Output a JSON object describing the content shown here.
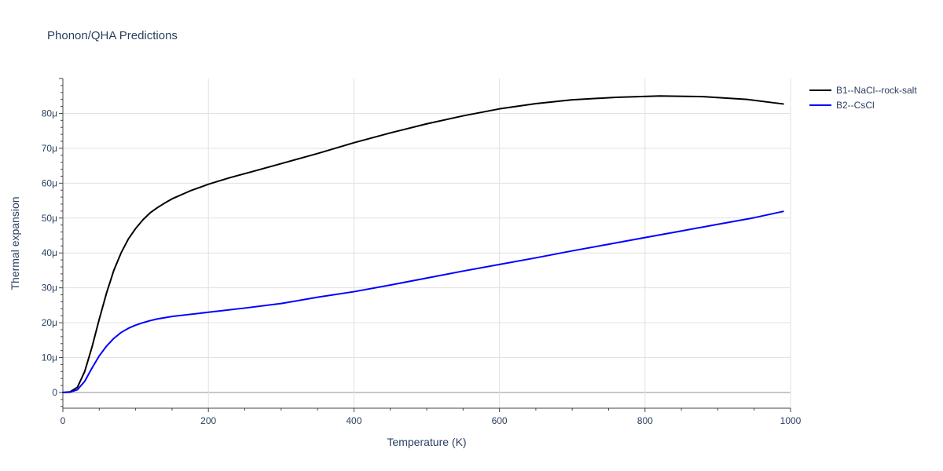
{
  "chart_data": {
    "type": "line",
    "title": "Phonon/QHA Predictions",
    "xlabel": "Temperature (K)",
    "ylabel": "Thermal expansion",
    "xlim": [
      0,
      1000
    ],
    "ylim": [
      -4.5e-06,
      9e-05
    ],
    "x_ticks": [
      0,
      200,
      400,
      600,
      800,
      1000
    ],
    "x_tick_labels": [
      "0",
      "200",
      "400",
      "600",
      "800",
      "1000"
    ],
    "y_ticks": [
      0,
      1e-05,
      2e-05,
      3e-05,
      4e-05,
      5e-05,
      6e-05,
      7e-05,
      8e-05
    ],
    "y_tick_labels": [
      "0",
      "10μ",
      "20μ",
      "30μ",
      "40μ",
      "50μ",
      "60μ",
      "70μ",
      "80μ"
    ],
    "grid": true,
    "legend_position": "top-right",
    "series": [
      {
        "name": "B1--NaCl--rock-salt",
        "color": "#000000",
        "x": [
          0,
          10,
          20,
          30,
          40,
          50,
          60,
          70,
          80,
          90,
          100,
          110,
          120,
          130,
          140,
          150,
          175,
          200,
          230,
          260,
          300,
          350,
          400,
          450,
          500,
          550,
          600,
          650,
          700,
          760,
          820,
          880,
          940,
          990
        ],
        "y": [
          0,
          2e-07,
          1.5e-06,
          6e-06,
          1.3e-05,
          2.1e-05,
          2.85e-05,
          3.5e-05,
          4e-05,
          4.4e-05,
          4.7e-05,
          4.95e-05,
          5.15e-05,
          5.3e-05,
          5.43e-05,
          5.55e-05,
          5.78e-05,
          5.97e-05,
          6.16e-05,
          6.33e-05,
          6.56e-05,
          6.85e-05,
          7.16e-05,
          7.44e-05,
          7.7e-05,
          7.93e-05,
          8.13e-05,
          8.28e-05,
          8.39e-05,
          8.46e-05,
          8.5e-05,
          8.48e-05,
          8.4e-05,
          8.27e-05
        ]
      },
      {
        "name": "B2--CsCl",
        "color": "#0000ff",
        "x": [
          0,
          10,
          20,
          30,
          40,
          50,
          60,
          70,
          80,
          90,
          100,
          110,
          120,
          130,
          150,
          175,
          200,
          250,
          300,
          350,
          400,
          450,
          500,
          550,
          600,
          650,
          700,
          750,
          800,
          850,
          900,
          950,
          990
        ],
        "y": [
          0,
          1e-07,
          8e-07,
          3.2e-06,
          7e-06,
          1.05e-05,
          1.33e-05,
          1.55e-05,
          1.72e-05,
          1.84e-05,
          1.93e-05,
          2e-05,
          2.06e-05,
          2.11e-05,
          2.18e-05,
          2.24e-05,
          2.3e-05,
          2.42e-05,
          2.55e-05,
          2.73e-05,
          2.89e-05,
          3.08e-05,
          3.28e-05,
          3.48e-05,
          3.67e-05,
          3.86e-05,
          4.06e-05,
          4.25e-05,
          4.44e-05,
          4.63e-05,
          4.82e-05,
          5.01e-05,
          5.19e-05
        ]
      }
    ]
  }
}
